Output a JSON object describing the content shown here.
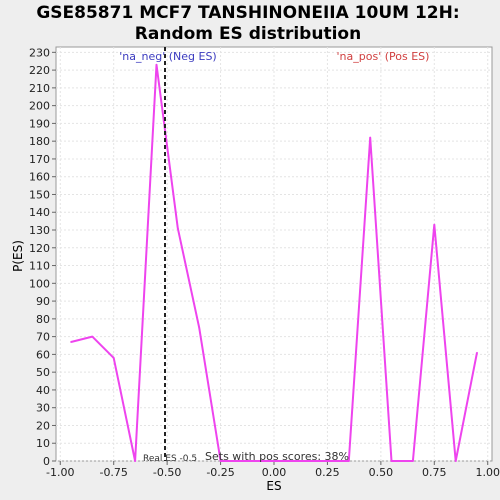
{
  "chart_data": {
    "type": "line",
    "title_line1": "GSE85871 MCF7 TANSHINONEIIA 10UM 12H:",
    "title_line2": "Random ES distribution",
    "xlabel": "ES",
    "ylabel": "P(ES)",
    "xlim": [
      -1.02,
      1.02
    ],
    "ylim": [
      0,
      233
    ],
    "x_ticks": [
      "-1.00",
      "-0.75",
      "-0.50",
      "-0.25",
      "0.00",
      "0.25",
      "0.50",
      "0.75",
      "1.00"
    ],
    "y_ticks": [
      "0",
      "10",
      "20",
      "30",
      "40",
      "50",
      "60",
      "70",
      "80",
      "90",
      "100",
      "110",
      "120",
      "130",
      "140",
      "150",
      "160",
      "170",
      "180",
      "190",
      "200",
      "210",
      "220",
      "230"
    ],
    "grid": true,
    "line_color": "#ee44ee",
    "x": [
      -0.95,
      -0.85,
      -0.75,
      -0.65,
      -0.55,
      -0.45,
      -0.35,
      -0.25,
      -0.15,
      -0.05,
      0.05,
      0.15,
      0.25,
      0.35,
      0.45,
      0.55,
      0.65,
      0.75,
      0.85,
      0.95
    ],
    "y": [
      67,
      70,
      58,
      0,
      223,
      131,
      75,
      0,
      0,
      0,
      0,
      0,
      0,
      0,
      182,
      0,
      0,
      133,
      0,
      61
    ],
    "real_es": -0.51,
    "annotations": {
      "neg": "'na_neg' (Neg ES)",
      "pos": "'na_pos' (Pos ES)",
      "real_es": "Real ES -0.5",
      "pos_scores": "Sets with pos scores: 38%"
    }
  }
}
